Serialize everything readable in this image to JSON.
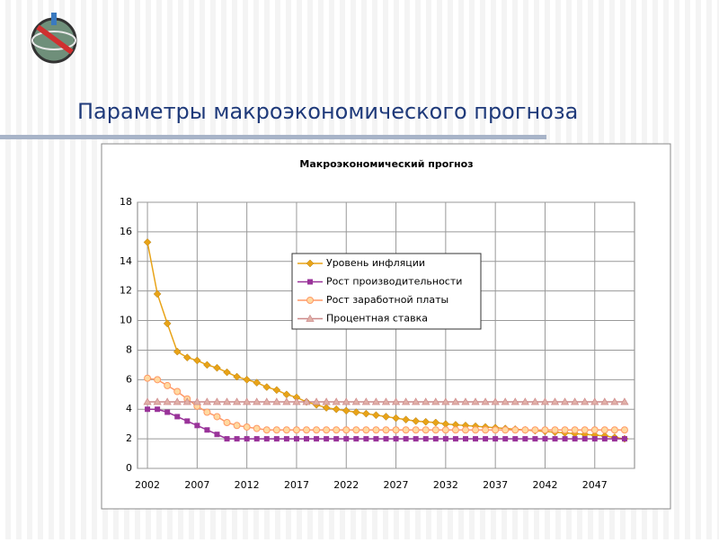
{
  "slide_title": "Параметры макроэкономического прогноза",
  "chart_data": {
    "type": "line",
    "title": "Макроэкономический прогноз",
    "x": [
      2002,
      2003,
      2004,
      2005,
      2006,
      2007,
      2008,
      2009,
      2010,
      2011,
      2012,
      2013,
      2014,
      2015,
      2016,
      2017,
      2018,
      2019,
      2020,
      2021,
      2022,
      2023,
      2024,
      2025,
      2026,
      2027,
      2028,
      2029,
      2030,
      2031,
      2032,
      2033,
      2034,
      2035,
      2036,
      2037,
      2038,
      2039,
      2040,
      2041,
      2042,
      2043,
      2044,
      2045,
      2046,
      2047,
      2048,
      2049,
      2050
    ],
    "xlim": [
      2001,
      2051
    ],
    "xticks": [
      2002,
      2007,
      2012,
      2017,
      2022,
      2027,
      2032,
      2037,
      2042,
      2047
    ],
    "ylim": [
      0,
      18
    ],
    "yticks": [
      0,
      2,
      4,
      6,
      8,
      10,
      12,
      14,
      16,
      18
    ],
    "grid": true,
    "legend": "top-center",
    "series": [
      {
        "name": "Уровень инфляции",
        "color": "#e8a317",
        "marker": "diamond",
        "values": [
          15.3,
          11.8,
          9.8,
          7.9,
          7.5,
          7.3,
          7.0,
          6.8,
          6.5,
          6.2,
          6.0,
          5.8,
          5.5,
          5.3,
          5.0,
          4.8,
          4.5,
          4.3,
          4.1,
          4.0,
          3.9,
          3.8,
          3.7,
          3.6,
          3.5,
          3.4,
          3.3,
          3.2,
          3.15,
          3.1,
          3.0,
          2.95,
          2.9,
          2.85,
          2.8,
          2.75,
          2.7,
          2.65,
          2.6,
          2.55,
          2.5,
          2.45,
          2.4,
          2.35,
          2.3,
          2.25,
          2.2,
          2.1,
          2.0
        ]
      },
      {
        "name": "Рост производительности",
        "color": "#993399",
        "marker": "square",
        "values": [
          4.0,
          4.0,
          3.8,
          3.5,
          3.2,
          2.9,
          2.6,
          2.3,
          2.0,
          2.0,
          2.0,
          2.0,
          2.0,
          2.0,
          2.0,
          2.0,
          2.0,
          2.0,
          2.0,
          2.0,
          2.0,
          2.0,
          2.0,
          2.0,
          2.0,
          2.0,
          2.0,
          2.0,
          2.0,
          2.0,
          2.0,
          2.0,
          2.0,
          2.0,
          2.0,
          2.0,
          2.0,
          2.0,
          2.0,
          2.0,
          2.0,
          2.0,
          2.0,
          2.0,
          2.0,
          2.0,
          2.0,
          2.0,
          2.0
        ]
      },
      {
        "name": "Рост заработной платы",
        "color": "#ff9966",
        "marker": "circle",
        "values": [
          6.1,
          6.0,
          5.6,
          5.2,
          4.7,
          4.2,
          3.8,
          3.5,
          3.1,
          2.9,
          2.8,
          2.7,
          2.6,
          2.6,
          2.6,
          2.6,
          2.6,
          2.6,
          2.6,
          2.6,
          2.6,
          2.6,
          2.6,
          2.6,
          2.6,
          2.6,
          2.6,
          2.6,
          2.6,
          2.6,
          2.6,
          2.6,
          2.6,
          2.6,
          2.6,
          2.6,
          2.6,
          2.6,
          2.6,
          2.6,
          2.6,
          2.6,
          2.6,
          2.6,
          2.6,
          2.6,
          2.6,
          2.6,
          2.6
        ]
      },
      {
        "name": "Процентная ставка",
        "color": "#cc8888",
        "marker": "triangle",
        "values": [
          4.5,
          4.5,
          4.5,
          4.5,
          4.5,
          4.5,
          4.5,
          4.5,
          4.5,
          4.5,
          4.5,
          4.5,
          4.5,
          4.5,
          4.5,
          4.5,
          4.5,
          4.5,
          4.5,
          4.5,
          4.5,
          4.5,
          4.5,
          4.5,
          4.5,
          4.5,
          4.5,
          4.5,
          4.5,
          4.5,
          4.5,
          4.5,
          4.5,
          4.5,
          4.5,
          4.5,
          4.5,
          4.5,
          4.5,
          4.5,
          4.5,
          4.5,
          4.5,
          4.5,
          4.5,
          4.5,
          4.5,
          4.5,
          4.5
        ]
      }
    ]
  }
}
